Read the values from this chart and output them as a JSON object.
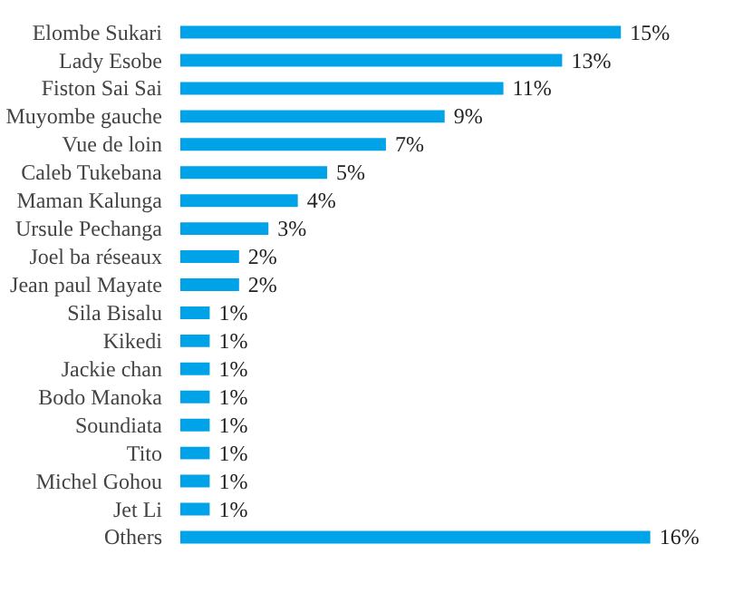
{
  "chart_data": {
    "type": "bar",
    "orientation": "horizontal",
    "categories": [
      "Elombe Sukari",
      "Lady Esobe",
      "Fiston Sai Sai",
      "Muyombe gauche",
      "Vue de loin",
      "Caleb Tukebana",
      "Maman Kalunga",
      "Ursule Pechanga",
      "Joel ba réseaux",
      "Jean paul Mayate",
      "Sila Bisalu",
      "Kikedi",
      "Jackie chan",
      "Bodo Manoka",
      "Soundiata",
      "Tito",
      "Michel Gohou",
      "Jet Li",
      "Others"
    ],
    "values": [
      15,
      13,
      11,
      9,
      7,
      5,
      4,
      3,
      2,
      2,
      1,
      1,
      1,
      1,
      1,
      1,
      1,
      1,
      16
    ],
    "value_labels": [
      "15%",
      "13%",
      "11%",
      "9%",
      "7%",
      "5%",
      "4%",
      "3%",
      "2%",
      "2%",
      "1%",
      "1%",
      "1%",
      "1%",
      "1%",
      "1%",
      "1%",
      "1%",
      "16%"
    ],
    "color": "#00a2e8",
    "grid": false
  }
}
